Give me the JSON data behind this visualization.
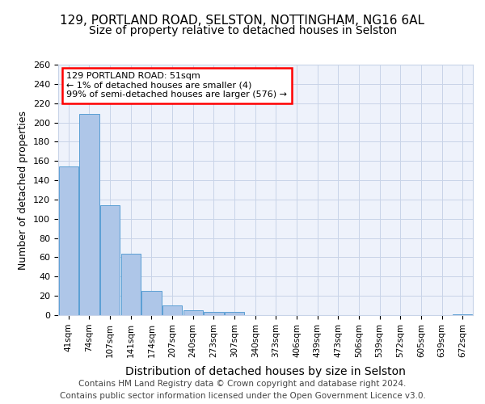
{
  "title1": "129, PORTLAND ROAD, SELSTON, NOTTINGHAM, NG16 6AL",
  "title2": "Size of property relative to detached houses in Selston",
  "xlabel": "Distribution of detached houses by size in Selston",
  "ylabel": "Number of detached properties",
  "footer": "Contains HM Land Registry data © Crown copyright and database right 2024.\nContains public sector information licensed under the Open Government Licence v3.0.",
  "bin_labels": [
    "41sqm",
    "74sqm",
    "107sqm",
    "141sqm",
    "174sqm",
    "207sqm",
    "240sqm",
    "273sqm",
    "307sqm",
    "340sqm",
    "373sqm",
    "406sqm",
    "439sqm",
    "473sqm",
    "506sqm",
    "539sqm",
    "572sqm",
    "605sqm",
    "639sqm",
    "672sqm"
  ],
  "bar_heights": [
    154,
    209,
    114,
    64,
    25,
    10,
    5,
    3,
    3,
    0,
    0,
    0,
    0,
    0,
    0,
    0,
    0,
    0,
    0,
    1
  ],
  "bar_color": "#aec6e8",
  "bar_edge_color": "#5a9fd4",
  "annotation_text": "129 PORTLAND ROAD: 51sqm\n← 1% of detached houses are smaller (4)\n99% of semi-detached houses are larger (576) →",
  "annotation_box_color": "white",
  "annotation_box_edge_color": "red",
  "ylim": [
    0,
    260
  ],
  "yticks": [
    0,
    20,
    40,
    60,
    80,
    100,
    120,
    140,
    160,
    180,
    200,
    220,
    240,
    260
  ],
  "bg_color": "#eef2fb",
  "grid_color": "#c8d4e8",
  "title1_fontsize": 11,
  "title2_fontsize": 10,
  "xlabel_fontsize": 10,
  "ylabel_fontsize": 9,
  "footer_fontsize": 7.5
}
